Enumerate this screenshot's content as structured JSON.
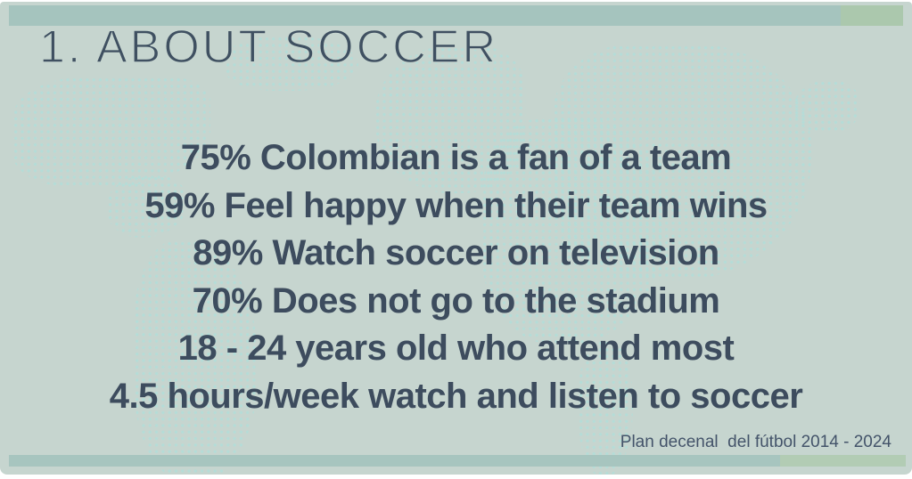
{
  "slide": {
    "title": "1. ABOUT SOCCER",
    "stats": [
      "75% Colombian is a fan of a team",
      "59% Feel happy when their team wins",
      "89% Watch soccer on television",
      "70% Does not go to the stadium",
      "18 - 24 years old who attend most",
      "4.5 hours/week watch and listen to soccer"
    ],
    "footer": "Plan decenal  del fútbol 2014 - 2024",
    "colors": {
      "slide_background": "#c6d5cf",
      "map_dots": "#b5ddd8",
      "accent_bar_teal": "#a5c4be",
      "accent_bar_green": "#abc8ad",
      "title_text": "#3f5061",
      "body_text": "#3d4c5e",
      "footer_text": "#44546a"
    }
  }
}
